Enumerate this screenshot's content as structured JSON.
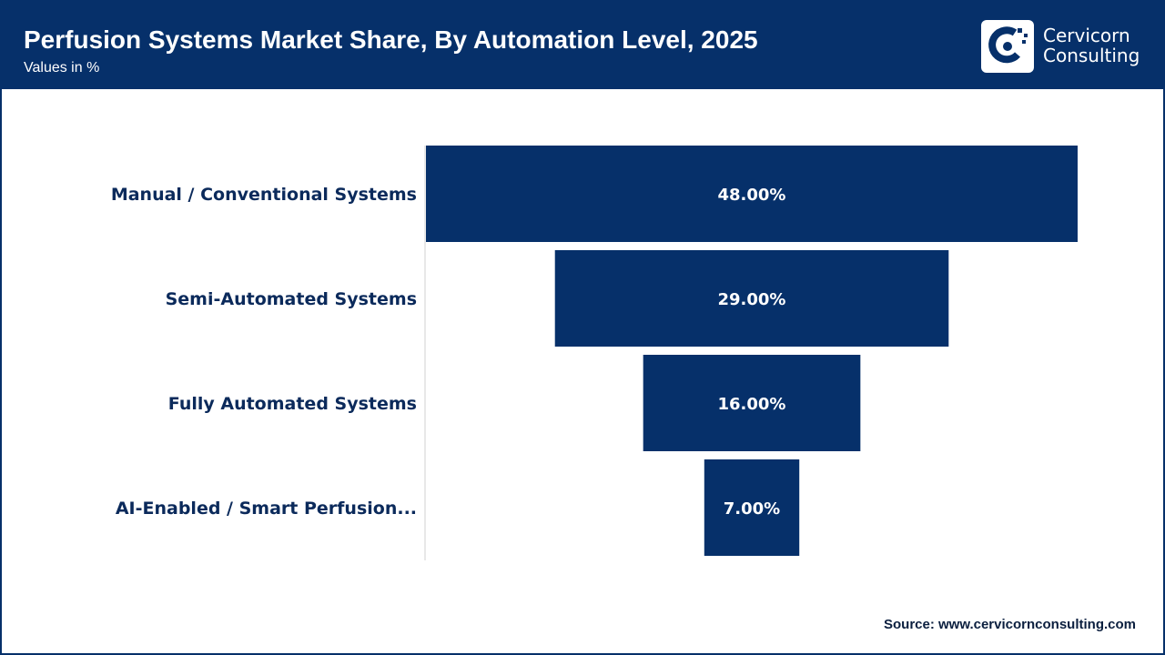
{
  "header": {
    "title": "Perfusion Systems Market Share, By Automation Level, 2025",
    "subtitle": "Values in %"
  },
  "logo": {
    "line1": "Cervicorn",
    "line2": "Consulting",
    "icon": "cervicorn-logo-icon"
  },
  "source": "Source: www.cervicornconsulting.com",
  "colors": {
    "navy": "#06306a",
    "label": "#0b2a5b",
    "axis": "#d0d0d0"
  },
  "chart_data": {
    "type": "bar",
    "orientation": "horizontal-funnel",
    "categories": [
      "Manual / Conventional Systems",
      "Semi-Automated Systems",
      "Fully Automated Systems",
      "AI-Enabled / Smart Perfusion..."
    ],
    "values": [
      48.0,
      29.0,
      16.0,
      7.0
    ],
    "data_labels": [
      "48.00%",
      "29.00%",
      "16.00%",
      "7.00%"
    ],
    "title": "Perfusion Systems Market Share, By Automation Level, 2025",
    "subtitle": "Values in %",
    "unit": "%",
    "grid": false,
    "legend": "none"
  }
}
